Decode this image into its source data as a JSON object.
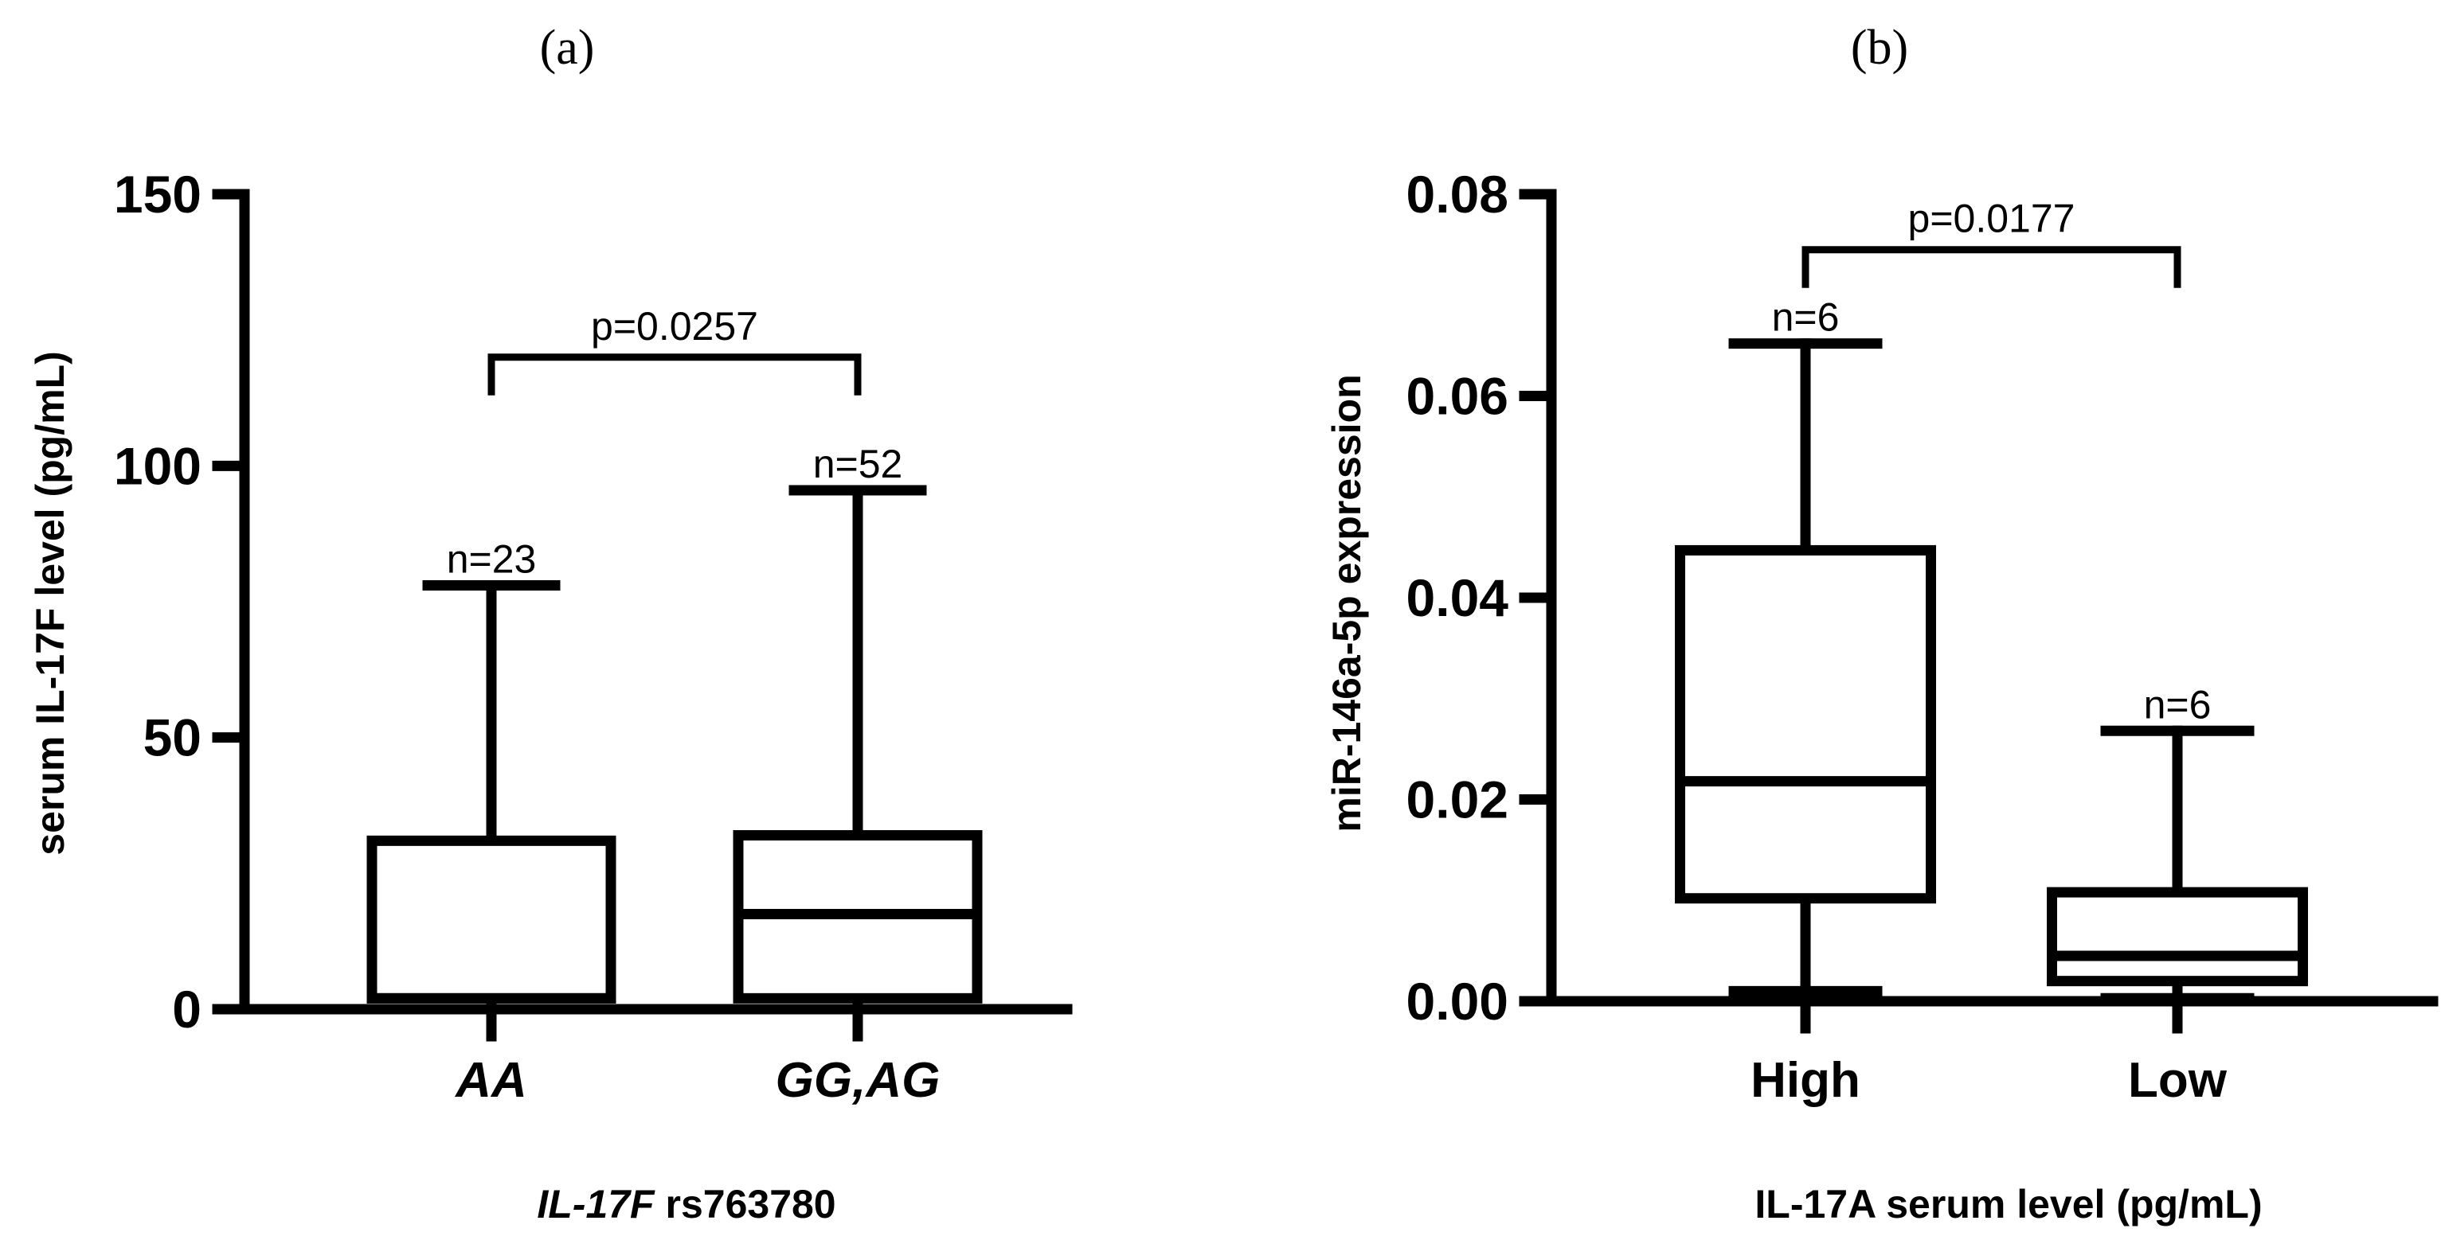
{
  "chart_data": [
    {
      "panel_label": "(a)",
      "type": "box",
      "categories": [
        "AA",
        "GG,AG"
      ],
      "categories_italic": true,
      "xlabel_parts": [
        {
          "text": "IL-17F",
          "italic": true
        },
        {
          "text": " rs763780",
          "italic": false
        }
      ],
      "ylabel": "serum IL-17F level (pg/mL)",
      "ylim": [
        0,
        150
      ],
      "yticks": [
        0,
        50,
        100,
        150
      ],
      "ytick_labels": [
        "0",
        "50",
        "100",
        "150"
      ],
      "boxes": [
        {
          "category": "AA",
          "min": 0,
          "q1": 2,
          "median": 2,
          "q3": 31,
          "max": 78,
          "n_label": "n=23"
        },
        {
          "category": "GG,AG",
          "min": 0,
          "q1": 2,
          "median": 17.5,
          "q3": 32,
          "max": 95.5,
          "n_label": "n=52"
        }
      ],
      "significance": {
        "between": [
          "AA",
          "GG,AG"
        ],
        "label": "p=0.0257",
        "y": 120
      }
    },
    {
      "panel_label": "(b)",
      "type": "box",
      "categories": [
        "High",
        "Low"
      ],
      "categories_italic": false,
      "xlabel_parts": [
        {
          "text": "IL-17A serum level (pg/mL)",
          "italic": false
        }
      ],
      "ylabel": "miR-146a-5p expression",
      "ylim": [
        0,
        0.08
      ],
      "yticks": [
        0,
        0.02,
        0.04,
        0.06,
        0.08
      ],
      "ytick_labels": [
        "0.00",
        "0.02",
        "0.04",
        "0.06",
        "0.08"
      ],
      "boxes": [
        {
          "category": "High",
          "min": 0.001,
          "q1": 0.0102,
          "median": 0.0218,
          "q3": 0.0447,
          "max": 0.0652,
          "n_label": "n=6"
        },
        {
          "category": "Low",
          "min": 0.0003,
          "q1": 0.002,
          "median": 0.0045,
          "q3": 0.0108,
          "max": 0.0268,
          "n_label": "n=6"
        }
      ],
      "significance": {
        "between": [
          "High",
          "Low"
        ],
        "label": "p=0.0177",
        "y": 0.0745
      }
    }
  ]
}
